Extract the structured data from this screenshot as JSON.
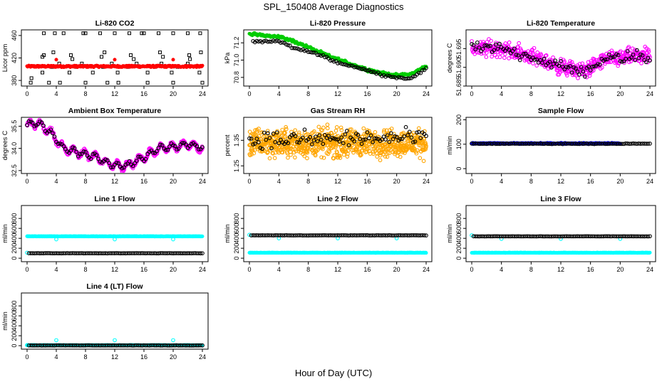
{
  "page": {
    "title": "SPL_150408  Average Diagnostics",
    "xlabel": "Hour of Day (UTC)"
  },
  "colors": {
    "black": "#000000",
    "red": "#ff0000",
    "green": "#00cc00",
    "magenta": "#ff00ff",
    "orange": "#ffa500",
    "blue": "#0000ff",
    "cyan": "#00ffff"
  },
  "chart_data": [
    {
      "id": "co2",
      "type": "scatter",
      "title": "Li-820 CO2",
      "xlabel": "",
      "ylabel": "Licor ppm",
      "xlim": [
        0,
        24
      ],
      "ylim": [
        370,
        470
      ],
      "xticks": [
        "0",
        "4",
        "8",
        "12",
        "16",
        "20",
        "24"
      ],
      "yticks": [
        380,
        420,
        460
      ],
      "ytick_labels": [
        "380",
        "420",
        "460"
      ],
      "series": [
        {
          "color": "black",
          "shape": "square",
          "x": [
            0.6,
            2.1,
            3.4,
            4.4,
            5.8,
            6.7,
            7.5,
            9.0,
            10.4,
            11.6,
            12.4,
            13.8,
            15.0,
            16.5,
            17.5,
            18.4,
            19.8,
            20.6,
            22.0,
            23.6,
            2.3,
            3.6,
            6.0,
            10.6,
            14.2,
            18.2,
            22.2,
            23.8,
            2.1,
            6.2,
            10.2,
            14.6,
            18.6,
            22.3,
            0.5,
            3.0,
            4.5,
            8.0,
            11.0,
            12.5,
            16.5,
            20.0,
            24.0
          ],
          "y": [
            384,
            394,
            404,
            410,
            394,
            404,
            410,
            394,
            404,
            410,
            394,
            404,
            410,
            394,
            404,
            410,
            394,
            404,
            410,
            394,
            425,
            430,
            425,
            430,
            425,
            430,
            425,
            430,
            422,
            418,
            422,
            418,
            422,
            418,
            376,
            376,
            376,
            376,
            376,
            376,
            376,
            376,
            376
          ]
        },
        {
          "color": "black",
          "shape": "square",
          "x": [
            2.3,
            3.8,
            5.0,
            7.7,
            8.0,
            10.0,
            12.0,
            14.0,
            15.7,
            16.0,
            18.0,
            20.0,
            22.0,
            23.7
          ],
          "y": [
            464,
            464,
            464,
            464,
            464,
            464,
            464,
            464,
            464,
            464,
            464,
            464,
            464,
            464
          ]
        },
        {
          "color": "red",
          "shape": "dot",
          "band": [
            0,
            24,
            403.5,
            406.5,
            0.08
          ]
        },
        {
          "color": "red",
          "shape": "dot",
          "x": [
            4.0,
            12.0,
            20.0
          ],
          "y": [
            417,
            417,
            417
          ]
        }
      ]
    },
    {
      "id": "pressure",
      "type": "scatter",
      "title": "Li-820 Pressure",
      "xlabel": "",
      "ylabel": "kPa",
      "xlim": [
        0,
        24
      ],
      "ylim": [
        70.7,
        71.35
      ],
      "xticks": [
        "0",
        "4",
        "8",
        "12",
        "16",
        "20",
        "24"
      ],
      "yticks": [
        70.8,
        71.0,
        71.2
      ],
      "ytick_labels": [
        "70.8",
        "71.0",
        "71.2"
      ],
      "series": [
        {
          "color": "green",
          "shape": "dot",
          "noise": 0.015,
          "curve": [
            [
              0,
              71.3
            ],
            [
              2,
              71.29
            ],
            [
              4,
              71.27
            ],
            [
              6,
              71.22
            ],
            [
              8,
              71.15
            ],
            [
              10,
              71.07
            ],
            [
              12,
              71.01
            ],
            [
              14,
              70.95
            ],
            [
              16,
              70.89
            ],
            [
              18,
              70.85
            ],
            [
              20,
              70.82
            ],
            [
              22,
              70.84
            ],
            [
              24,
              70.93
            ]
          ],
          "step": 0.1
        },
        {
          "color": "black",
          "shape": "circle",
          "noise": 0.01,
          "curve": [
            [
              0.5,
              71.21
            ],
            [
              2,
              71.22
            ],
            [
              4,
              71.22
            ],
            [
              6,
              71.14
            ],
            [
              8,
              71.1
            ],
            [
              10,
              71.05
            ],
            [
              12,
              70.97
            ],
            [
              14,
              70.93
            ],
            [
              16,
              70.88
            ],
            [
              18,
              70.83
            ],
            [
              20,
              70.8
            ],
            [
              22,
              70.79
            ],
            [
              24,
              70.9
            ]
          ],
          "step": 0.25
        }
      ]
    },
    {
      "id": "temp",
      "type": "scatter",
      "title": "Li-820 Temperature",
      "xlabel": "",
      "ylabel": "degrees C",
      "xlim": [
        0,
        24
      ],
      "ylim": [
        51.685,
        51.7
      ],
      "xticks": [
        "0",
        "4",
        "8",
        "12",
        "16",
        "20",
        "24"
      ],
      "yticks": [
        51.685,
        51.69,
        51.695
      ],
      "ytick_labels": [
        "51.685",
        "51.690",
        "51.695"
      ],
      "series": [
        {
          "color": "magenta",
          "shape": "circle",
          "noise": 0.0018,
          "curve": [
            [
              0,
              51.695
            ],
            [
              4,
              51.695
            ],
            [
              8,
              51.693
            ],
            [
              12,
              51.69
            ],
            [
              15,
              51.689
            ],
            [
              18,
              51.692
            ],
            [
              22,
              51.693
            ],
            [
              24,
              51.693
            ]
          ],
          "step": 0.05
        },
        {
          "color": "black",
          "shape": "circle",
          "noise": 0.0014,
          "curve": [
            [
              0,
              51.695
            ],
            [
              4,
              51.695
            ],
            [
              8,
              51.693
            ],
            [
              12,
              51.69
            ],
            [
              15,
              51.689
            ],
            [
              18,
              51.692
            ],
            [
              22,
              51.693
            ],
            [
              24,
              51.692
            ]
          ],
          "step": 0.25
        }
      ]
    },
    {
      "id": "boxtemp",
      "type": "scatter",
      "title": "Ambient Box Temperature",
      "xlabel": "",
      "ylabel": "degrees C",
      "xlim": [
        0,
        24
      ],
      "ylim": [
        32.3,
        36.1
      ],
      "xticks": [
        "0",
        "4",
        "8",
        "12",
        "16",
        "20",
        "24"
      ],
      "yticks": [
        32.5,
        34.0,
        35.5
      ],
      "ytick_labels": [
        "32.5",
        "34.0",
        "35.5"
      ],
      "series": [
        {
          "color": "magenta",
          "shape": "circle",
          "noise": 0.12,
          "wave": 0.25,
          "curve": [
            [
              0,
              35.6
            ],
            [
              1.5,
              35.7
            ],
            [
              3,
              35.2
            ],
            [
              5,
              34.0
            ],
            [
              7,
              33.7
            ],
            [
              9,
              33.5
            ],
            [
              11,
              33.0
            ],
            [
              13,
              32.8
            ],
            [
              14,
              32.9
            ],
            [
              16,
              33.4
            ],
            [
              18,
              34.0
            ],
            [
              20,
              34.1
            ],
            [
              22,
              34.3
            ],
            [
              24,
              34.0
            ]
          ],
          "step": 0.05
        },
        {
          "color": "black",
          "shape": "circle",
          "noise": 0.08,
          "wave": 0.2,
          "curve": [
            [
              0,
              35.6
            ],
            [
              1.5,
              35.7
            ],
            [
              3,
              35.2
            ],
            [
              5,
              34.0
            ],
            [
              7,
              33.7
            ],
            [
              9,
              33.5
            ],
            [
              11,
              33.0
            ],
            [
              13,
              32.8
            ],
            [
              14,
              32.9
            ],
            [
              16,
              33.4
            ],
            [
              18,
              34.0
            ],
            [
              20,
              34.1
            ],
            [
              22,
              34.3
            ],
            [
              24,
              34.0
            ]
          ],
          "step": 0.25
        }
      ]
    },
    {
      "id": "rh",
      "type": "scatter",
      "title": "Gas Stream RH",
      "xlabel": "",
      "ylabel": "percent",
      "xlim": [
        0,
        24
      ],
      "ylim": [
        1.22,
        1.44
      ],
      "xticks": [
        "0",
        "4",
        "8",
        "12",
        "16",
        "20",
        "24"
      ],
      "yticks": [
        1.25,
        1.35
      ],
      "ytick_labels": [
        "1.25",
        "1.35"
      ],
      "series": [
        {
          "color": "orange",
          "shape": "circle",
          "noise": 0.045,
          "curve": [
            [
              0,
              1.34
            ],
            [
              24,
              1.34
            ]
          ],
          "step": 0.03
        },
        {
          "color": "black",
          "shape": "circle",
          "noise": 0.028,
          "curve": [
            [
              0,
              1.35
            ],
            [
              24,
              1.36
            ]
          ],
          "step": 0.25
        }
      ]
    },
    {
      "id": "sample",
      "type": "scatter",
      "title": "Sample Flow",
      "xlabel": "",
      "ylabel": "ml/min",
      "xlim": [
        0,
        24
      ],
      "ylim": [
        -20,
        210
      ],
      "xticks": [
        "0",
        "4",
        "8",
        "12",
        "16",
        "20",
        "24"
      ],
      "yticks": [
        0,
        100,
        200
      ],
      "ytick_labels": [
        "0",
        "100",
        "200"
      ],
      "series": [
        {
          "color": "blue",
          "shape": "dot",
          "noise": 2,
          "curve": [
            [
              0,
              103
            ],
            [
              20,
              103
            ]
          ],
          "step": 0.04
        },
        {
          "color": "black",
          "shape": "circle",
          "noise": 1,
          "curve": [
            [
              0,
              102
            ],
            [
              24,
              102
            ]
          ],
          "step": 0.25
        }
      ]
    },
    {
      "id": "line1",
      "type": "scatter",
      "title": "Line 1 Flow",
      "xlabel": "",
      "ylabel": "ml/min",
      "xlim": [
        0,
        24
      ],
      "ylim": [
        -70,
        1060
      ],
      "xticks": [
        "0",
        "4",
        "8",
        "12",
        "16",
        "20",
        "24"
      ],
      "yticks": [
        0,
        200,
        400,
        600,
        800
      ],
      "ytick_labels": [
        "0",
        "200",
        "400",
        "600",
        "800"
      ],
      "series": [
        {
          "color": "cyan",
          "shape": "dot",
          "noise": 4,
          "curve": [
            [
              0,
              440
            ],
            [
              24,
              440
            ]
          ],
          "step": 0.04
        },
        {
          "color": "cyan",
          "shape": "circle",
          "x": [
            0.0,
            4.0,
            12.0,
            20.0
          ],
          "y": [
            110,
            380,
            380,
            380
          ]
        },
        {
          "color": "black",
          "shape": "circle",
          "noise": 2,
          "curve": [
            [
              0.25,
              100
            ],
            [
              24,
              100
            ]
          ],
          "step": 0.25
        }
      ]
    },
    {
      "id": "line2",
      "type": "scatter",
      "title": "Line 2 Flow",
      "xlabel": "",
      "ylabel": "ml/min",
      "xlim": [
        0,
        24
      ],
      "ylim": [
        -70,
        1060
      ],
      "xticks": [
        "0",
        "4",
        "8",
        "12",
        "16",
        "20",
        "24"
      ],
      "yticks": [
        0,
        200,
        400,
        600,
        800
      ],
      "ytick_labels": [
        "0",
        "200",
        "400",
        "600",
        "800"
      ],
      "series": [
        {
          "color": "cyan",
          "shape": "dot",
          "noise": 3,
          "curve": [
            [
              0,
              110
            ],
            [
              24,
              110
            ]
          ],
          "step": 0.04
        },
        {
          "color": "cyan",
          "shape": "circle",
          "x": [
            0.0,
            4.0,
            12.0,
            20.0
          ],
          "y": [
            470,
            400,
            400,
            400
          ]
        },
        {
          "color": "black",
          "shape": "circle",
          "noise": 2,
          "curve": [
            [
              0.25,
              460
            ],
            [
              24,
              460
            ]
          ],
          "step": 0.25
        }
      ]
    },
    {
      "id": "line3",
      "type": "scatter",
      "title": "Line 3 Flow",
      "xlabel": "",
      "ylabel": "ml/min",
      "xlim": [
        0,
        24
      ],
      "ylim": [
        -70,
        1060
      ],
      "xticks": [
        "0",
        "4",
        "8",
        "12",
        "16",
        "20",
        "24"
      ],
      "yticks": [
        0,
        200,
        400,
        600,
        800
      ],
      "ytick_labels": [
        "0",
        "200",
        "400",
        "600",
        "800"
      ],
      "series": [
        {
          "color": "cyan",
          "shape": "dot",
          "noise": 3,
          "curve": [
            [
              0,
              110
            ],
            [
              24,
              110
            ]
          ],
          "step": 0.04
        },
        {
          "color": "cyan",
          "shape": "circle",
          "x": [
            0.0,
            4.0,
            12.0,
            20.0
          ],
          "y": [
            460,
            390,
            390,
            390
          ]
        },
        {
          "color": "black",
          "shape": "circle",
          "noise": 2,
          "curve": [
            [
              0.25,
              440
            ],
            [
              24,
              440
            ]
          ],
          "step": 0.25
        }
      ]
    },
    {
      "id": "line4",
      "type": "scatter",
      "title": "Line 4 (LT) Flow",
      "xlabel": "",
      "ylabel": "ml/min",
      "xlim": [
        0,
        24
      ],
      "ylim": [
        -70,
        1060
      ],
      "xticks": [
        "0",
        "4",
        "8",
        "12",
        "16",
        "20",
        "24"
      ],
      "yticks": [
        0,
        200,
        400,
        600,
        800
      ],
      "ytick_labels": [
        "0",
        "200",
        "400",
        "600",
        "800"
      ],
      "series": [
        {
          "color": "cyan",
          "shape": "dot",
          "noise": 3,
          "curve": [
            [
              0,
              10
            ],
            [
              24,
              10
            ]
          ],
          "step": 0.04
        },
        {
          "color": "cyan",
          "shape": "circle",
          "x": [
            0.0,
            4.0,
            12.0,
            20.0
          ],
          "y": [
            10,
            110,
            110,
            110
          ]
        },
        {
          "color": "black",
          "shape": "circle",
          "noise": 2,
          "curve": [
            [
              0.25,
              5
            ],
            [
              24,
              5
            ]
          ],
          "step": 0.25
        }
      ]
    }
  ]
}
